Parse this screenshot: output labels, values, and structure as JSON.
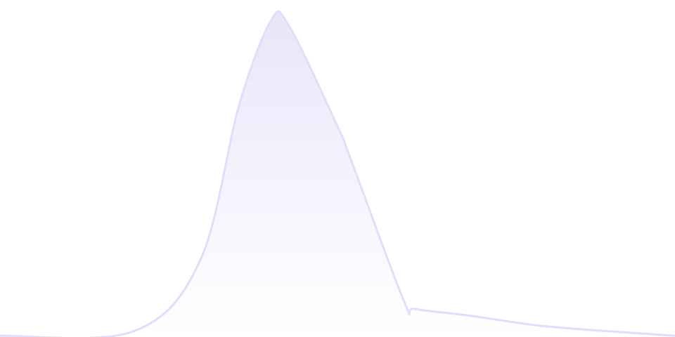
{
  "chart_data": {
    "type": "area",
    "title": "",
    "xlabel": "",
    "ylabel": "",
    "x": [
      0,
      19,
      28.5,
      34,
      38.5,
      41,
      48,
      50,
      57.5,
      59,
      67,
      78,
      96
    ],
    "values": [
      0.4,
      1.8,
      24.4,
      73.3,
      100,
      98.9,
      66.7,
      55.6,
      11.1,
      8.9,
      6.7,
      3.3,
      0.4
    ],
    "xlim": [
      0,
      96
    ],
    "ylim": [
      0,
      106.7
    ],
    "grid": false,
    "axes_visible": false,
    "colors": {
      "line": "#e2ddf8",
      "fill_top": "#e9e5fa",
      "fill_bottom": "#ffffff"
    }
  }
}
